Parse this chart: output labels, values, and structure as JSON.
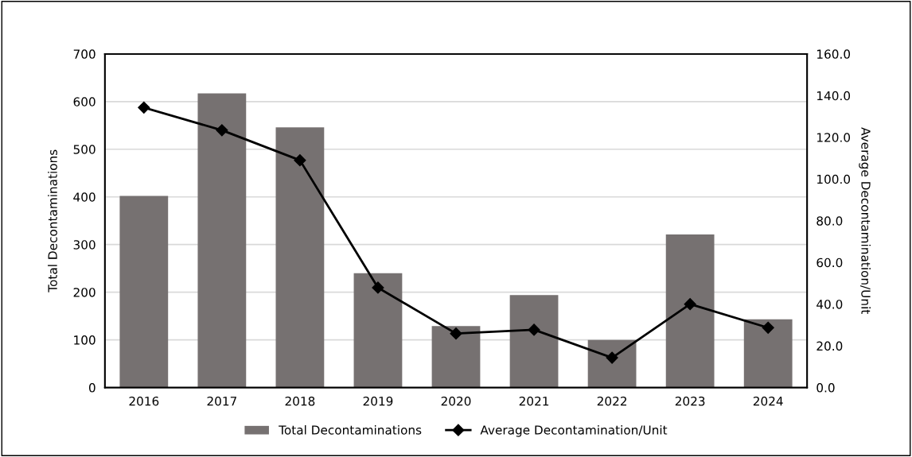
{
  "chart_data": {
    "type": "bar",
    "categories": [
      "2016",
      "2017",
      "2018",
      "2019",
      "2020",
      "2021",
      "2022",
      "2023",
      "2024"
    ],
    "ylabel": "Total Decontaminations",
    "y2label": "Average Decontamination/Unit",
    "series": [
      {
        "name": "Total Decontaminations",
        "color": "#767171",
        "values": [
          402,
          617,
          546,
          240,
          129,
          194,
          100,
          321,
          143
        ]
      },
      {
        "name": "Average Decontamination/Unit",
        "type": "line",
        "axis": "y2",
        "color": "#000000",
        "marker": "diamond",
        "values": [
          134.3,
          123.4,
          109.0,
          47.9,
          25.9,
          27.7,
          14.3,
          40.0,
          28.7
        ]
      }
    ],
    "ylim": [
      0,
      700
    ],
    "yticks": [
      0,
      100,
      200,
      300,
      400,
      500,
      600,
      700
    ],
    "y2lim": [
      0,
      160
    ],
    "y2ticks": [
      {
        "value": 0,
        "label": "0.0"
      },
      {
        "value": 20,
        "label": "20.0"
      },
      {
        "value": 40,
        "label": "40.0"
      },
      {
        "value": 60,
        "label": "60.0"
      },
      {
        "value": 80,
        "label": "80.0"
      },
      {
        "value": 100,
        "label": "100.0"
      },
      {
        "value": 120,
        "label": "120.0"
      },
      {
        "value": 140,
        "label": "140.0"
      },
      {
        "value": 160,
        "label": "160.0"
      }
    ],
    "grid": "y",
    "legend": "bottom"
  }
}
